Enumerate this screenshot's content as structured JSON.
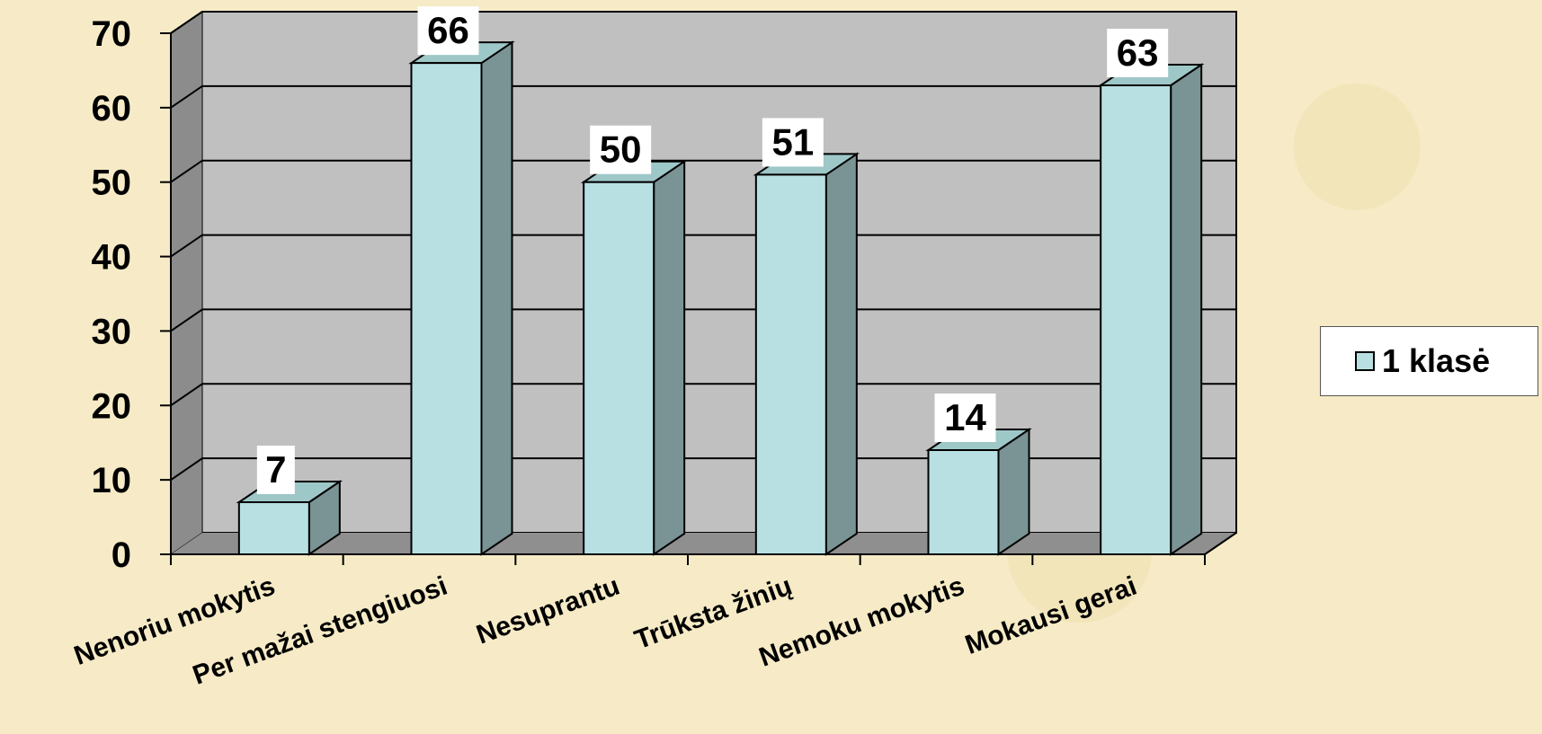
{
  "chart_data": {
    "type": "bar",
    "categories": [
      "Nenoriu mokytis",
      "Per mažai stengiuosi",
      "Nesuprantu",
      "Trūksta žinių",
      "Nemoku mokytis",
      "Mokausi gerai"
    ],
    "series": [
      {
        "name": "1 klasė",
        "values": [
          7,
          66,
          50,
          51,
          14,
          63
        ]
      }
    ],
    "ylim": [
      0,
      70
    ],
    "yticks": [
      0,
      10,
      20,
      30,
      40,
      50,
      60,
      70
    ],
    "grid": true,
    "legend_position": "right",
    "three_d": true,
    "colors": {
      "bar_front": "#b8e0e2",
      "bar_side": "#7a9394",
      "bar_top": "#9ec7c8",
      "back_wall": "#c0c0c0",
      "side_wall": "#8c8c8c",
      "floor": "#8f8f8f"
    }
  }
}
